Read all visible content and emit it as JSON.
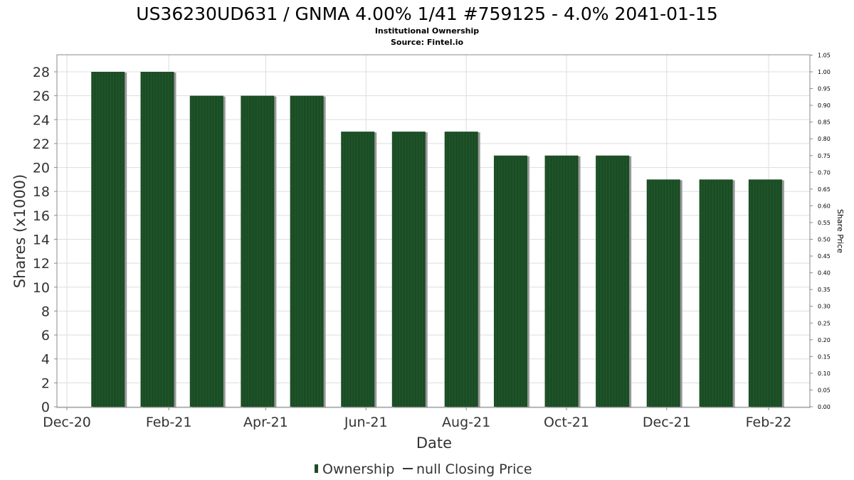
{
  "chart_data": {
    "type": "bar",
    "title": "US36230UD631 / GNMA 4.00% 1/41 #759125 - 4.0% 2041-01-15",
    "subtitle": "Institutional Ownership",
    "source": "Source: Fintel.io",
    "xlabel": "Date",
    "ylabel": "Shares (x1000)",
    "y2label": "Share Price",
    "ylim": [
      0,
      29
    ],
    "y2lim": [
      0,
      1.05
    ],
    "yticks": [
      0,
      2,
      4,
      6,
      8,
      10,
      12,
      14,
      16,
      18,
      20,
      22,
      24,
      26,
      28
    ],
    "y2ticks": [
      "0.00",
      "0.05",
      "0.10",
      "0.15",
      "0.20",
      "0.25",
      "0.30",
      "0.35",
      "0.40",
      "0.45",
      "0.50",
      "0.55",
      "0.60",
      "0.65",
      "0.70",
      "0.75",
      "0.80",
      "0.85",
      "0.90",
      "0.95",
      "1.00",
      "1.05"
    ],
    "xticks": [
      {
        "label": "Dec-20",
        "date": "2020-12-01"
      },
      {
        "label": "Feb-21",
        "date": "2021-02-01"
      },
      {
        "label": "Apr-21",
        "date": "2021-04-01"
      },
      {
        "label": "Jun-21",
        "date": "2021-06-01"
      },
      {
        "label": "Aug-21",
        "date": "2021-08-01"
      },
      {
        "label": "Oct-21",
        "date": "2021-10-01"
      },
      {
        "label": "Dec-21",
        "date": "2021-12-01"
      },
      {
        "label": "Feb-22",
        "date": "2022-02-01"
      }
    ],
    "xrange": [
      "2020-11-25",
      "2022-02-28"
    ],
    "series": [
      {
        "name": "Ownership",
        "color": "#1b4d25",
        "x": [
          "2020-12-26",
          "2021-01-25",
          "2021-02-24",
          "2021-03-27",
          "2021-04-26",
          "2021-05-27",
          "2021-06-27",
          "2021-07-29",
          "2021-08-28",
          "2021-09-28",
          "2021-10-29",
          "2021-11-29",
          "2021-12-31",
          "2022-01-30"
        ],
        "values": [
          28,
          28,
          26,
          26,
          26,
          23,
          23,
          23,
          21,
          21,
          21,
          19,
          19,
          19
        ]
      },
      {
        "name": "null Closing Price",
        "values": []
      }
    ],
    "legend": [
      "Ownership",
      "null Closing Price"
    ],
    "legend_position": "bottom",
    "grid": true
  }
}
